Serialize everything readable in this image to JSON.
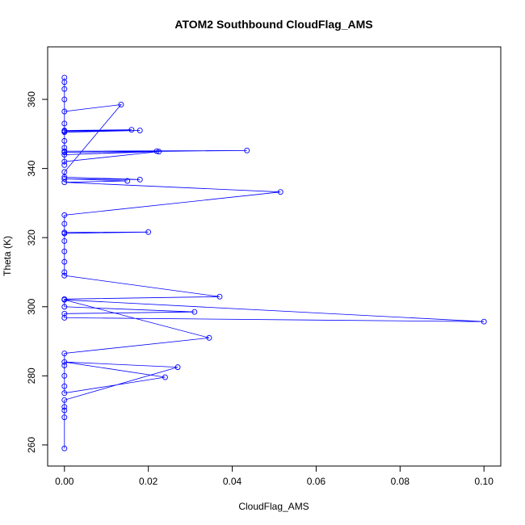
{
  "chart_data": {
    "type": "line",
    "title": "ATOM2 Southbound CloudFlag_AMS",
    "x_label": "CloudFlag_AMS",
    "y_label": "Theta (K)",
    "color": "#0000ff",
    "xlim": [
      -0.004,
      0.104
    ],
    "ylim": [
      253.9,
      375.2
    ],
    "xticks": [
      {
        "value": 0,
        "label": "0.00"
      },
      {
        "value": 0.02,
        "label": "0.02"
      },
      {
        "value": 0.04,
        "label": "0.04"
      },
      {
        "value": 0.06,
        "label": "0.06"
      },
      {
        "value": 0.08,
        "label": "0.08"
      },
      {
        "value": 0.1,
        "label": "0.10"
      }
    ],
    "yticks": [
      260,
      280,
      300,
      320,
      340,
      360
    ],
    "x": [
      0,
      0,
      0,
      0,
      0,
      0.027,
      0,
      0.024,
      0,
      0,
      0,
      0,
      0,
      0.0345,
      0,
      0.1,
      0,
      0,
      0.031,
      0,
      0,
      0.037,
      0,
      0,
      0,
      0,
      0,
      0,
      0.02,
      0,
      0,
      0,
      0.0515,
      0,
      0.015,
      0,
      0.018,
      0,
      0,
      0.0135,
      0,
      0,
      0,
      0.016,
      0,
      0.018,
      0,
      0,
      0,
      0.0435,
      0,
      0.022,
      0,
      0.0225,
      0,
      0,
      0,
      0,
      0,
      0,
      0
    ],
    "values": [
      259,
      268,
      270,
      271,
      273,
      282.5,
      284,
      279.6,
      275,
      277,
      280,
      283,
      286.5,
      291,
      302,
      295.7,
      296.8,
      298,
      298.5,
      300,
      302.2,
      302.9,
      309,
      310,
      313,
      316,
      319,
      321.2,
      321.6,
      321.5,
      324,
      326.5,
      333.2,
      336,
      336.4,
      337,
      336.8,
      337.5,
      339,
      358.5,
      356.5,
      353,
      351,
      351.2,
      350.8,
      351,
      350.5,
      348,
      345,
      345.2,
      344.7,
      345,
      344,
      344.9,
      342,
      341,
      346,
      360,
      363,
      365,
      366.3
    ]
  }
}
